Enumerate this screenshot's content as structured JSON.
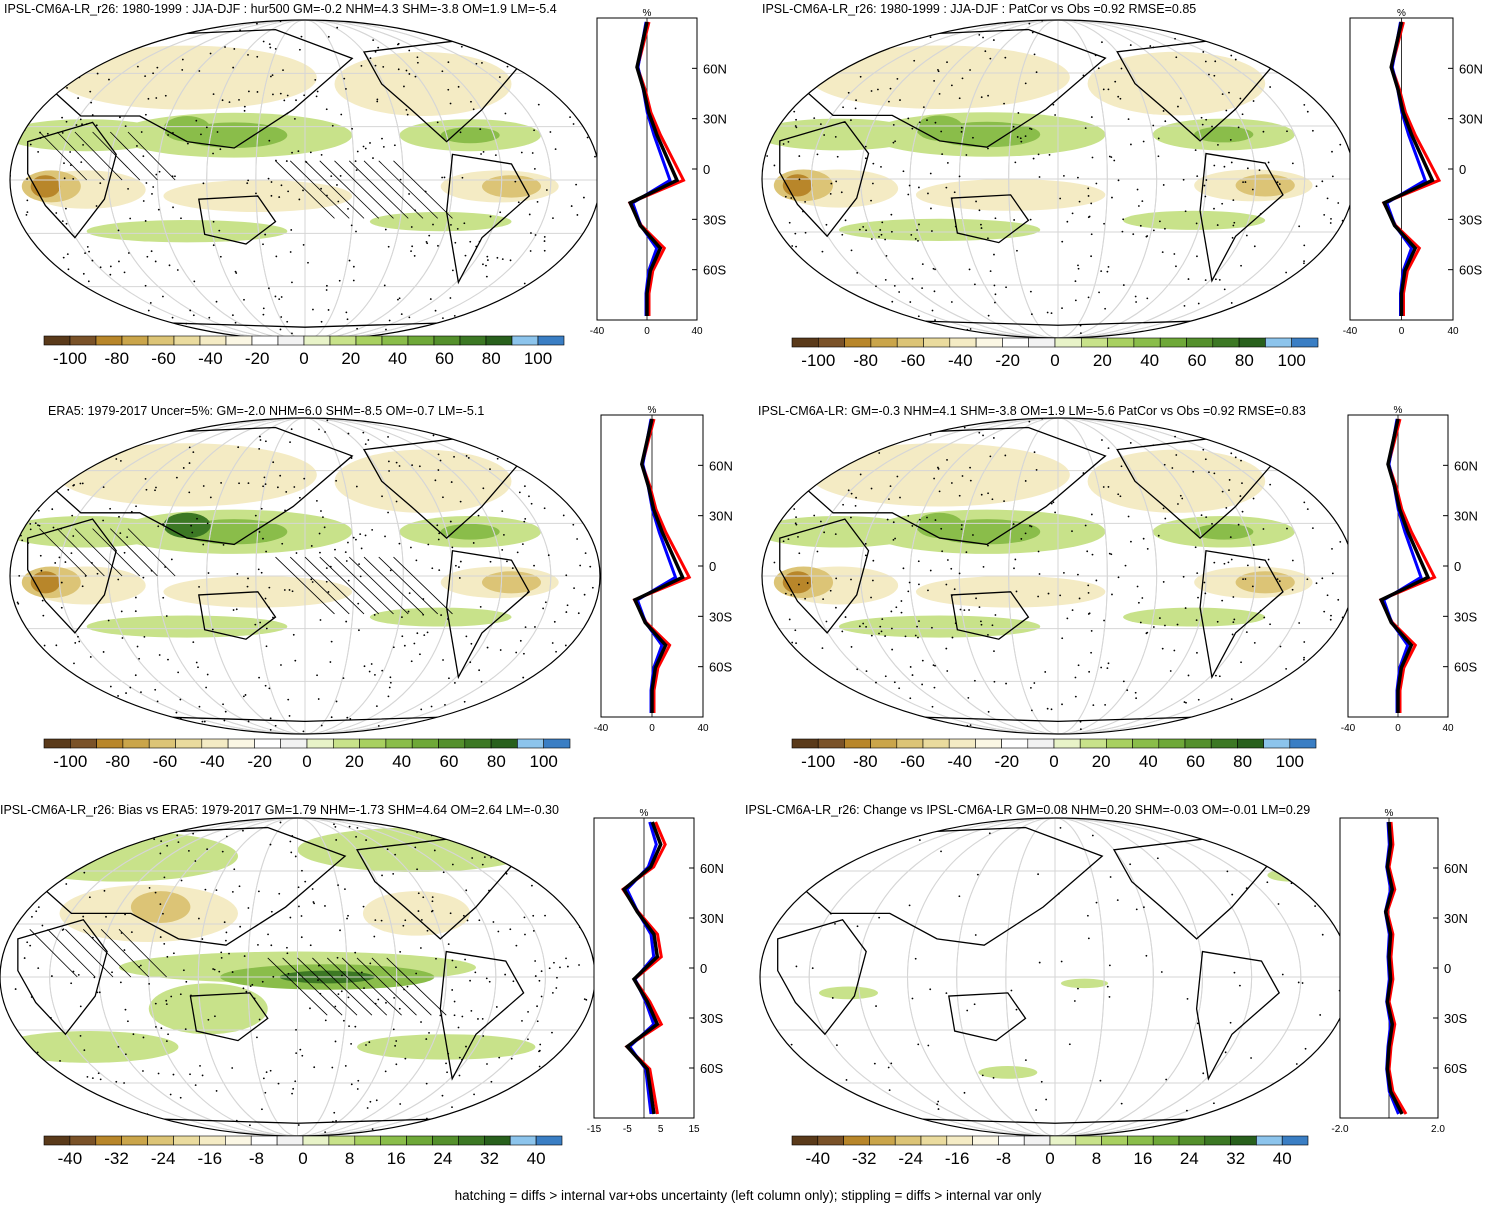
{
  "panels": [
    {
      "title": "IPSL-CM6A-LR_r26: 1980-1999 : JJA-DJF : hur500 GM=-0.2 NHM=4.3 SHM=-3.8 OM=1.9 LM=-5.4",
      "colorbar_labels": [
        "-100",
        "-80",
        "-60",
        "-40",
        "-20",
        "0",
        "20",
        "40",
        "60",
        "80",
        "100"
      ],
      "profile_xticks": [
        "-40",
        "0",
        "40"
      ],
      "profile_unit": "%",
      "lat_labels": [
        "60N",
        "30N",
        "0",
        "30S",
        "60S"
      ]
    },
    {
      "title": "IPSL-CM6A-LR_r26: 1980-1999 : JJA-DJF : PatCor vs Obs =0.92 RMSE=0.85",
      "colorbar_labels": [
        "-100",
        "-80",
        "-60",
        "-40",
        "-20",
        "0",
        "20",
        "40",
        "60",
        "80",
        "100"
      ],
      "profile_xticks": [
        "-40",
        "0",
        "40"
      ],
      "profile_unit": "%",
      "lat_labels": [
        "60N",
        "30N",
        "0",
        "30S",
        "60S"
      ]
    },
    {
      "title": "ERA5: 1979-2017 Uncer=5%: GM=-2.0 NHM=6.0 SHM=-8.5 OM=-0.7 LM=-5.1",
      "colorbar_labels": [
        "-100",
        "-80",
        "-60",
        "-40",
        "-20",
        "0",
        "20",
        "40",
        "60",
        "80",
        "100"
      ],
      "profile_xticks": [
        "-40",
        "0",
        "40"
      ],
      "profile_unit": "%",
      "lat_labels": [
        "60N",
        "30N",
        "0",
        "30S",
        "60S"
      ]
    },
    {
      "title": "IPSL-CM6A-LR: GM=-0.3 NHM=4.1 SHM=-3.8 OM=1.9 LM=-5.6 PatCor vs Obs =0.92 RMSE=0.83",
      "colorbar_labels": [
        "-100",
        "-80",
        "-60",
        "-40",
        "-20",
        "0",
        "20",
        "40",
        "60",
        "80",
        "100"
      ],
      "profile_xticks": [
        "-40",
        "0",
        "40"
      ],
      "profile_unit": "%",
      "lat_labels": [
        "60N",
        "30N",
        "0",
        "30S",
        "60S"
      ]
    },
    {
      "title": "IPSL-CM6A-LR_r26: Bias vs ERA5: 1979-2017 GM=1.79 NHM=-1.73 SHM=4.64 OM=2.64 LM=-0.30",
      "colorbar_labels": [
        "-40",
        "-32",
        "-24",
        "-16",
        "-8",
        "0",
        "8",
        "16",
        "24",
        "32",
        "40"
      ],
      "profile_xticks": [
        "-15",
        "-5",
        "5",
        "15"
      ],
      "profile_unit": "%",
      "lat_labels": [
        "60N",
        "30N",
        "0",
        "30S",
        "60S"
      ]
    },
    {
      "title": "IPSL-CM6A-LR_r26: Change vs IPSL-CM6A-LR GM=0.08 NHM=0.20 SHM=-0.03 OM=-0.01 LM=0.29",
      "colorbar_labels": [
        "-40",
        "-32",
        "-24",
        "-16",
        "-8",
        "0",
        "8",
        "16",
        "24",
        "32",
        "40"
      ],
      "profile_xticks": [
        "-2.0",
        "2.0"
      ],
      "profile_unit": "%",
      "lat_labels": [
        "60N",
        "30N",
        "0",
        "30S",
        "60S"
      ]
    }
  ],
  "colorbar_colors": [
    "#5a3a1a",
    "#7a5228",
    "#b8862a",
    "#caa54a",
    "#dcc476",
    "#eadb9e",
    "#f4ebc4",
    "#fbf7e4",
    "#ffffff",
    "#f2f2f2",
    "#e8f3c8",
    "#c8e28a",
    "#a8d060",
    "#8abd4a",
    "#6ea838",
    "#54902c",
    "#3c7824",
    "#28601c",
    "#8cc4ec",
    "#3a7ec4"
  ],
  "map_colors": {
    "ocean": "#ffffff",
    "land_line": "#000000",
    "green_light": "#c8e28a",
    "green_mid": "#8abd4a",
    "green_dark": "#3c7824",
    "tan_light": "#f4ebc4",
    "tan_mid": "#dcc476",
    "brown": "#b8862a"
  },
  "profile_colors": {
    "model": "#0000ff",
    "obs": "#ff0000",
    "ensemble": "#000000"
  },
  "footnote": "hatching = diffs > internal var+obs uncertainty (left column only); stippling = diffs > internal var only"
}
